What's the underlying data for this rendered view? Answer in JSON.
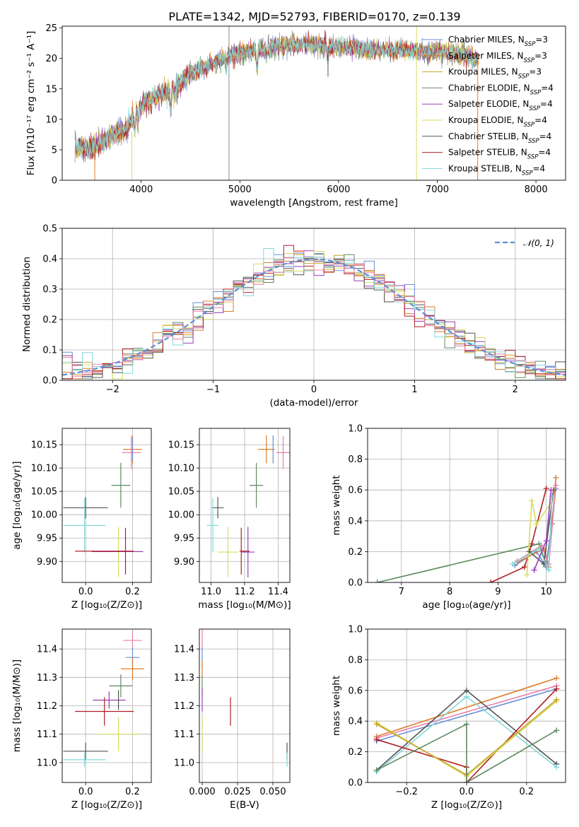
{
  "figure_title": "PLATE=1342, MJD=52793, FIBERID=0170, z=0.139",
  "colors": {
    "Chabrier MILES": "#6a8fd8",
    "Salpeter MILES": "#e07b2a",
    "Kroupa MILES": "#c9a227",
    "Chabrier ELODIE": "#5f8a5f",
    "Salpeter ELODIE": "#9b3fb5",
    "Kroupa ELODIE": "#d7dc62",
    "Chabrier STELIB": "#555555",
    "Salpeter STELIB": "#b01f24",
    "Kroupa STELIB": "#83d7d9",
    "extra_pink": "#e87ea8"
  },
  "chart_data": [
    {
      "id": "spectrum",
      "type": "line",
      "title": "PLATE=1342, MJD=52793, FIBERID=0170, z=0.139",
      "xlabel": "wavelength [Angstrom, rest frame]",
      "ylabel": "Flux [fλ10⁻¹⁷ erg cm⁻² s⁻¹ A⁻¹]",
      "xlim": [
        3200,
        8300
      ],
      "ylim": [
        0,
        25.3
      ],
      "xticks": [
        "4000",
        "5000",
        "6000",
        "7000",
        "8000"
      ],
      "yticks": [
        "0",
        "5",
        "10",
        "15",
        "20",
        "25"
      ],
      "legend_position": "right",
      "legend": [
        {
          "label": "Chabrier MILES, N",
          "sub": "SSP",
          "tail": "=3",
          "color": "#6a8fd8"
        },
        {
          "label": "Salpeter MILES, N",
          "sub": "SSP",
          "tail": "=3",
          "color": "#e07b2a"
        },
        {
          "label": "Kroupa MILES, N",
          "sub": "SSP",
          "tail": "=3",
          "color": "#c9a227"
        },
        {
          "label": "Chabrier ELODIE, N",
          "sub": "SSP",
          "tail": "=4",
          "color": "#5f8a5f"
        },
        {
          "label": "Salpeter ELODIE, N",
          "sub": "SSP",
          "tail": "=4",
          "color": "#9b3fb5"
        },
        {
          "label": "Kroupa ELODIE, N",
          "sub": "SSP",
          "tail": "=4",
          "color": "#d7dc62"
        },
        {
          "label": "Chabrier STELIB, N",
          "sub": "SSP",
          "tail": "=4",
          "color": "#555555"
        },
        {
          "label": "Salpeter STELIB, N",
          "sub": "SSP",
          "tail": "=4",
          "color": "#b01f24"
        },
        {
          "label": "Kroupa STELIB, N",
          "sub": "SSP",
          "tail": "=4",
          "color": "#83d7d9"
        }
      ],
      "continuum": [
        [
          3330,
          5.6
        ],
        [
          3500,
          5.3
        ],
        [
          3700,
          7.4
        ],
        [
          3850,
          8.4
        ],
        [
          3950,
          11.5
        ],
        [
          4100,
          13.5
        ],
        [
          4300,
          14.5
        ],
        [
          4500,
          17.5
        ],
        [
          4700,
          19.0
        ],
        [
          4900,
          20.5
        ],
        [
          5100,
          21.2
        ],
        [
          5300,
          21.8
        ],
        [
          5500,
          22.2
        ],
        [
          5700,
          22.3
        ],
        [
          5900,
          22.0
        ],
        [
          6100,
          21.9
        ],
        [
          6300,
          21.4
        ],
        [
          6500,
          21.5
        ],
        [
          6700,
          21.3
        ],
        [
          6900,
          21.0
        ],
        [
          7100,
          21.2
        ],
        [
          7400,
          20.0
        ]
      ],
      "absorption_dips": [
        [
          3934,
          -3.0
        ],
        [
          3968,
          -2.5
        ],
        [
          4101,
          -1.5
        ],
        [
          4300,
          -3.0
        ],
        [
          4340,
          -1.5
        ],
        [
          4861,
          -1.5
        ],
        [
          5175,
          -3.5
        ],
        [
          5270,
          -1.5
        ],
        [
          5890,
          -2.5
        ],
        [
          6563,
          -0.8
        ]
      ],
      "vertical_spikes": [
        [
          3530,
          0,
          4.7,
          "#e07b2a"
        ],
        [
          3905,
          0,
          8.0,
          "#d7dc62"
        ],
        [
          4890,
          0,
          25.3,
          "#888888"
        ],
        [
          5893,
          22.0,
          17.0,
          "#555555"
        ],
        [
          6790,
          0,
          25.3,
          "#d7dc62"
        ],
        [
          7410,
          0,
          20.5,
          "#e07b2a"
        ]
      ]
    },
    {
      "id": "residuals",
      "type": "step-histogram",
      "xlabel": "(data-model)/error",
      "ylabel": "Normed distribution",
      "xlim": [
        -2.5,
        2.5
      ],
      "ylim": [
        0,
        0.5
      ],
      "xticks": [
        "−2",
        "−1",
        "0",
        "1",
        "2"
      ],
      "yticks": [
        "0.0",
        "0.1",
        "0.2",
        "0.3",
        "0.4",
        "0.5"
      ],
      "bin_edges_range": [
        -2.5,
        2.5
      ],
      "bins": 50,
      "reference_curve": {
        "name": "N(0,1)",
        "mean": 0,
        "sigma": 1,
        "color": "#5b8fd8",
        "style": "dashed"
      },
      "legend_position": "upper right"
    },
    {
      "id": "age_vs_Z",
      "type": "errorbar",
      "xlabel": "Z [log₁₀(Z/Z⊙)]",
      "ylabel": "age  [log₁₀(age/yr)]",
      "xlim": [
        -0.1,
        0.28
      ],
      "ylim": [
        9.855,
        10.185
      ],
      "xticks": [
        "0.0",
        "0.2"
      ],
      "yticks": [
        "9.90",
        "9.95",
        "10.00",
        "10.05",
        "10.10",
        "10.15"
      ],
      "points": [
        {
          "x": 0.2,
          "y": 10.14,
          "xerr": 0.04,
          "yerr": 0.03,
          "color": "#e07b2a"
        },
        {
          "x": 0.195,
          "y": 10.133,
          "xerr": 0.04,
          "yerr": 0.035,
          "color": "#e87ea8"
        },
        {
          "x": 0.2,
          "y": 10.14,
          "xerr": 0.0,
          "yerr": 0.025,
          "color": "#6a8fd8"
        },
        {
          "x": 0.15,
          "y": 10.063,
          "xerr": 0.04,
          "yerr": 0.048,
          "color": "#5f8a5f"
        },
        {
          "x": 0.0,
          "y": 10.015,
          "xerr": 0.095,
          "yerr": 0.023,
          "color": "#555555"
        },
        {
          "x": -0.005,
          "y": 9.977,
          "xerr": 0.09,
          "yerr": 0.058,
          "color": "#83d7d9"
        },
        {
          "x": 0.14,
          "y": 9.92,
          "xerr": 0.0,
          "yerr": 0.054,
          "color": "#d7dc62"
        },
        {
          "x": 0.135,
          "y": 9.921,
          "xerr": 0.11,
          "yerr": 0.0,
          "color": "#9b3fb5"
        },
        {
          "x": 0.08,
          "y": 9.922,
          "xerr": 0.125,
          "yerr": 0.0,
          "color": "#b01f24"
        },
        {
          "x": 0.17,
          "y": 9.922,
          "xerr": 0.0,
          "yerr": 0.05,
          "color": "#b01f24"
        }
      ]
    },
    {
      "id": "age_vs_mass",
      "type": "errorbar",
      "xlabel": "mass [log₁₀(M/M⊙)]",
      "ylabel": "",
      "xlim": [
        10.93,
        11.47
      ],
      "ylim": [
        9.855,
        10.185
      ],
      "xticks": [
        "11.0",
        "11.2",
        "11.4"
      ],
      "yticks": [
        "9.90",
        "9.95",
        "10.00",
        "10.05",
        "10.10",
        "10.15"
      ],
      "points": [
        {
          "x": 11.33,
          "y": 10.14,
          "xerr": 0.05,
          "yerr": 0.03,
          "color": "#e07b2a"
        },
        {
          "x": 11.37,
          "y": 10.14,
          "xerr": 0.0,
          "yerr": 0.03,
          "color": "#6a8fd8"
        },
        {
          "x": 11.43,
          "y": 10.133,
          "xerr": 0.04,
          "yerr": 0.035,
          "color": "#e87ea8"
        },
        {
          "x": 11.27,
          "y": 10.063,
          "xerr": 0.04,
          "yerr": 0.048,
          "color": "#5f8a5f"
        },
        {
          "x": 11.04,
          "y": 10.015,
          "xerr": 0.035,
          "yerr": 0.023,
          "color": "#555555"
        },
        {
          "x": 11.01,
          "y": 9.977,
          "xerr": 0.035,
          "yerr": 0.058,
          "color": "#83d7d9"
        },
        {
          "x": 11.1,
          "y": 9.92,
          "xerr": 0.06,
          "yerr": 0.054,
          "color": "#d7dc62"
        },
        {
          "x": 11.22,
          "y": 9.92,
          "xerr": 0.04,
          "yerr": 0.054,
          "color": "#9b3fb5"
        },
        {
          "x": 11.18,
          "y": 9.922,
          "xerr": 0.0,
          "yerr": 0.05,
          "color": "#b01f24"
        },
        {
          "x": 11.2,
          "y": 9.922,
          "xerr": 0.03,
          "yerr": 0.0,
          "color": "#b01f24"
        }
      ]
    },
    {
      "id": "weight_vs_age",
      "type": "line",
      "xlabel": "age  [log₁₀(age/yr)]",
      "ylabel": "mass weight",
      "xlim": [
        6.3,
        10.4
      ],
      "ylim": [
        0,
        1.0
      ],
      "xticks": [
        "7",
        "8",
        "9",
        "10"
      ],
      "yticks": [
        "0.0",
        "0.2",
        "0.4",
        "0.6",
        "0.8",
        "1.0"
      ],
      "series": [
        {
          "color": "#5f8a5f",
          "points": [
            [
              6.5,
              0.0
            ],
            [
              9.85,
              0.25
            ],
            [
              10.0,
              0.12
            ],
            [
              10.12,
              0.38
            ]
          ]
        },
        {
          "color": "#b01f24",
          "points": [
            [
              8.85,
              0.0
            ],
            [
              9.55,
              0.1
            ],
            [
              9.7,
              0.25
            ],
            [
              10.0,
              0.61
            ]
          ]
        },
        {
          "color": "#6a8fd8",
          "points": [
            [
              9.35,
              0.11
            ],
            [
              9.8,
              0.2
            ],
            [
              10.0,
              0.1
            ],
            [
              10.2,
              0.61
            ]
          ]
        },
        {
          "color": "#e07b2a",
          "points": [
            [
              9.4,
              0.13
            ],
            [
              9.95,
              0.22
            ],
            [
              10.05,
              0.1
            ],
            [
              10.2,
              0.68
            ]
          ]
        },
        {
          "color": "#e87ea8",
          "points": [
            [
              9.4,
              0.14
            ],
            [
              9.9,
              0.24
            ],
            [
              10.05,
              0.12
            ],
            [
              10.2,
              0.63
            ]
          ]
        },
        {
          "color": "#d7dc62",
          "points": [
            [
              9.6,
              0.05
            ],
            [
              9.7,
              0.53
            ],
            [
              9.8,
              0.38
            ],
            [
              10.15,
              0.54
            ]
          ]
        },
        {
          "color": "#555555",
          "points": [
            [
              9.65,
              0.2
            ],
            [
              9.95,
              0.12
            ],
            [
              10.15,
              0.6
            ]
          ]
        },
        {
          "color": "#83d7d9",
          "points": [
            [
              9.3,
              0.12
            ],
            [
              9.85,
              0.22
            ],
            [
              10.05,
              0.08
            ],
            [
              10.12,
              0.56
            ]
          ]
        },
        {
          "color": "#9b3fb5",
          "points": [
            [
              9.75,
              0.08
            ],
            [
              10.0,
              0.27
            ],
            [
              10.1,
              0.6
            ]
          ]
        }
      ]
    },
    {
      "id": "mass_vs_Z",
      "type": "errorbar",
      "xlabel": "Z [log₁₀(Z/Z⊙)]",
      "ylabel": "mass [log₁₀(M/M⊙)]",
      "xlim": [
        -0.1,
        0.28
      ],
      "ylim": [
        10.93,
        11.47
      ],
      "xticks": [
        "0.0",
        "0.2"
      ],
      "yticks": [
        "11.0",
        "11.1",
        "11.2",
        "11.3",
        "11.4"
      ],
      "points": [
        {
          "x": 0.2,
          "y": 11.43,
          "xerr": 0.04,
          "yerr": 0.035,
          "color": "#e87ea8"
        },
        {
          "x": 0.2,
          "y": 11.37,
          "xerr": 0.03,
          "yerr": 0.035,
          "color": "#6a8fd8"
        },
        {
          "x": 0.2,
          "y": 11.33,
          "xerr": 0.05,
          "yerr": 0.04,
          "color": "#e07b2a"
        },
        {
          "x": 0.15,
          "y": 11.27,
          "xerr": 0.05,
          "yerr": 0.04,
          "color": "#5f8a5f"
        },
        {
          "x": 0.1,
          "y": 11.22,
          "xerr": 0.07,
          "yerr": 0.03,
          "color": "#9b3fb5"
        },
        {
          "x": 0.14,
          "y": 11.22,
          "xerr": 0.0,
          "yerr": 0.035,
          "color": "#555555"
        },
        {
          "x": 0.08,
          "y": 11.18,
          "xerr": 0.125,
          "yerr": 0.05,
          "color": "#b01f24"
        },
        {
          "x": 0.14,
          "y": 11.1,
          "xerr": 0.09,
          "yerr": 0.06,
          "color": "#d7dc62"
        },
        {
          "x": 0.0,
          "y": 11.04,
          "xerr": 0.095,
          "yerr": 0.03,
          "color": "#555555"
        },
        {
          "x": -0.005,
          "y": 11.01,
          "xerr": 0.09,
          "yerr": 0.025,
          "color": "#83d7d9"
        }
      ]
    },
    {
      "id": "mass_vs_EBV",
      "type": "errorbar",
      "xlabel": "E(B-V)",
      "ylabel": "",
      "xlim": [
        -0.002,
        0.062
      ],
      "ylim": [
        10.93,
        11.47
      ],
      "xticks": [
        "0.000",
        "0.025",
        "0.050"
      ],
      "yticks": [
        "11.0",
        "11.1",
        "11.2",
        "11.3",
        "11.4"
      ],
      "points": [
        {
          "x": 0.0,
          "y": 11.43,
          "xerr": 0.0,
          "yerr": 0.04,
          "color": "#e87ea8"
        },
        {
          "x": 0.0,
          "y": 11.37,
          "xerr": 0.0,
          "yerr": 0.035,
          "color": "#6a8fd8"
        },
        {
          "x": 0.0,
          "y": 11.33,
          "xerr": 0.0,
          "yerr": 0.03,
          "color": "#e07b2a"
        },
        {
          "x": 0.0,
          "y": 11.27,
          "xerr": 0.0,
          "yerr": 0.035,
          "color": "#5f8a5f"
        },
        {
          "x": 0.0,
          "y": 11.22,
          "xerr": 0.0,
          "yerr": 0.04,
          "color": "#9b3fb5"
        },
        {
          "x": 0.0,
          "y": 11.1,
          "xerr": 0.0,
          "yerr": 0.06,
          "color": "#d7dc62"
        },
        {
          "x": 0.02,
          "y": 11.18,
          "xerr": 0.0,
          "yerr": 0.05,
          "color": "#b01f24"
        },
        {
          "x": 0.06,
          "y": 11.04,
          "xerr": 0.0,
          "yerr": 0.03,
          "color": "#555555"
        },
        {
          "x": 0.06,
          "y": 11.01,
          "xerr": 0.0,
          "yerr": 0.025,
          "color": "#83d7d9"
        }
      ]
    },
    {
      "id": "weight_vs_Z",
      "type": "line",
      "xlabel": "Z [log₁₀(Z/Z⊙)]",
      "ylabel": "mass weight",
      "xlim": [
        -0.33,
        0.33
      ],
      "ylim": [
        0,
        1.0
      ],
      "xticks": [
        "−0.2",
        "0.0",
        "0.2"
      ],
      "yticks": [
        "0.0",
        "0.2",
        "0.4",
        "0.6",
        "0.8",
        "1.0"
      ],
      "series": [
        {
          "color": "#e07b2a",
          "points": [
            [
              -0.3,
              0.3
            ],
            [
              0.3,
              0.68
            ]
          ]
        },
        {
          "color": "#e87ea8",
          "points": [
            [
              -0.3,
              0.29
            ],
            [
              0.3,
              0.63
            ]
          ]
        },
        {
          "color": "#6a8fd8",
          "points": [
            [
              -0.3,
              0.27
            ],
            [
              0.3,
              0.61
            ]
          ]
        },
        {
          "color": "#555555",
          "points": [
            [
              -0.3,
              0.08
            ],
            [
              0.0,
              0.6
            ],
            [
              0.3,
              0.12
            ]
          ]
        },
        {
          "color": "#83d7d9",
          "points": [
            [
              -0.3,
              0.07
            ],
            [
              0.0,
              0.56
            ],
            [
              0.3,
              0.1
            ]
          ]
        },
        {
          "color": "#b01f24",
          "points": [
            [
              -0.3,
              0.28
            ],
            [
              0.0,
              0.1
            ],
            [
              0.0,
              0.0
            ],
            [
              0.3,
              0.61
            ]
          ]
        },
        {
          "color": "#d7dc62",
          "points": [
            [
              -0.3,
              0.39
            ],
            [
              0.0,
              0.04
            ],
            [
              0.3,
              0.53
            ]
          ]
        },
        {
          "color": "#c9a227",
          "points": [
            [
              -0.3,
              0.38
            ],
            [
              0.0,
              0.05
            ],
            [
              0.3,
              0.54
            ]
          ]
        },
        {
          "color": "#5f8a5f",
          "points": [
            [
              -0.3,
              0.08
            ],
            [
              0.0,
              0.38
            ],
            [
              0.0,
              0.0
            ],
            [
              0.3,
              0.34
            ]
          ]
        }
      ]
    }
  ]
}
